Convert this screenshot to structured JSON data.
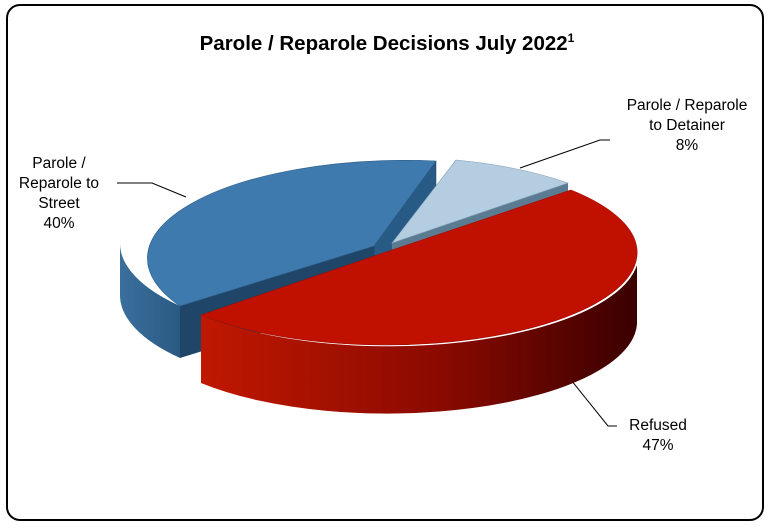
{
  "chart_data": {
    "type": "pie",
    "style": "3d-exploded",
    "title": "Parole / Reparole Decisions July 2022",
    "title_superscript": "1",
    "legend": "none",
    "slices": [
      {
        "label_lines": [
          "Parole /",
          "Reparole to",
          "Street"
        ],
        "value_label": "40%",
        "value": 40,
        "color": "#3e7aad"
      },
      {
        "label_lines": [
          "Parole / Reparole",
          "to Detainer"
        ],
        "value_label": "8%",
        "value": 8,
        "color": "#b5cde0"
      },
      {
        "label_lines": [
          "Refused"
        ],
        "value_label": "47%",
        "value": 47,
        "color": "#c01000"
      }
    ]
  }
}
